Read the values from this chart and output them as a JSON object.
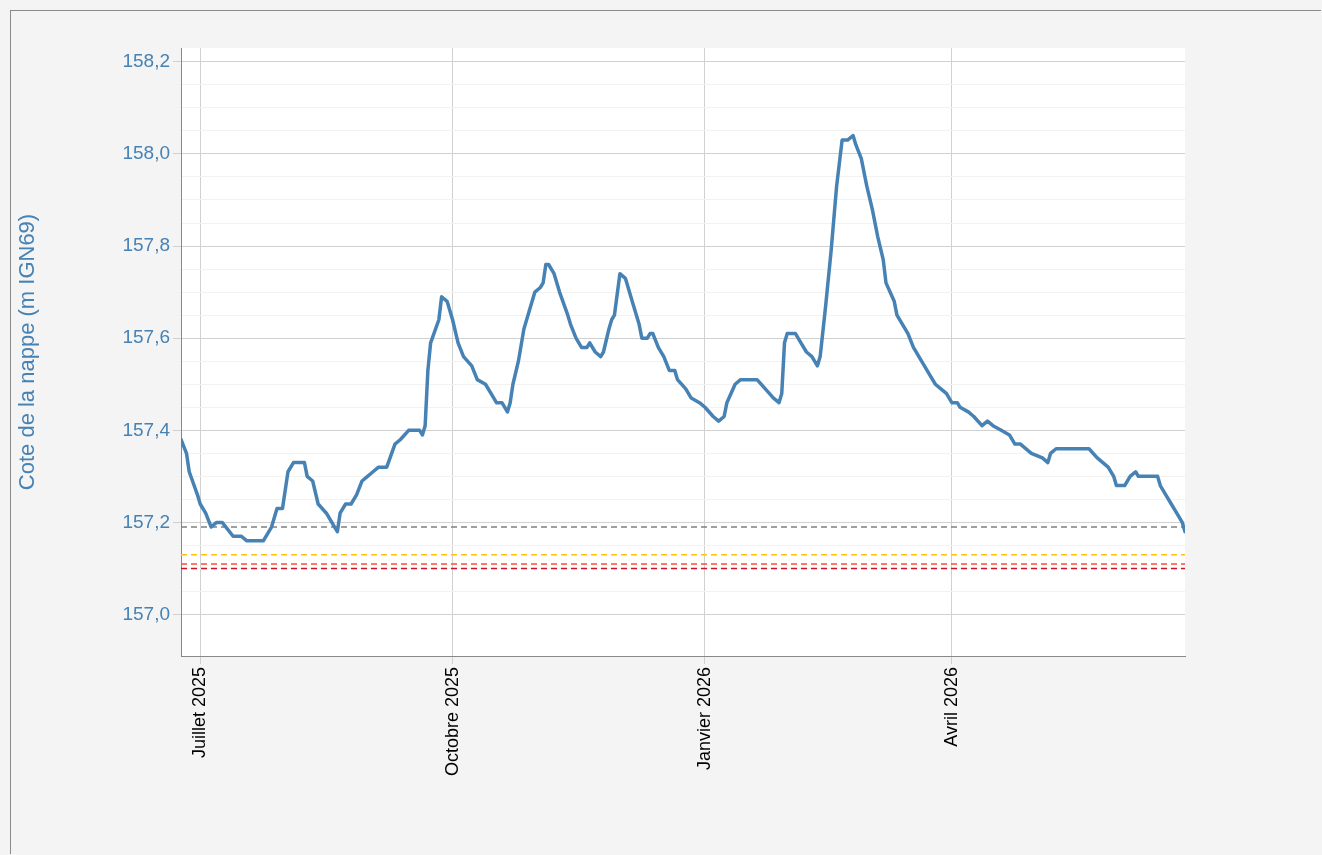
{
  "chart_data": {
    "type": "line",
    "ylabel": "Cote de la nappe (m IGN69)",
    "x": [
      "2025-06-24",
      "2025-06-26",
      "2025-06-27",
      "2025-06-30",
      "2025-07-01",
      "2025-07-03",
      "2025-07-05",
      "2025-07-07",
      "2025-07-09",
      "2025-07-13",
      "2025-07-16",
      "2025-07-18",
      "2025-07-24",
      "2025-07-27",
      "2025-07-29",
      "2025-07-31",
      "2025-08-02",
      "2025-08-04",
      "2025-08-08",
      "2025-08-09",
      "2025-08-11",
      "2025-08-13",
      "2025-08-16",
      "2025-08-19",
      "2025-08-20",
      "2025-08-21",
      "2025-08-23",
      "2025-08-25",
      "2025-08-27",
      "2025-08-29",
      "2025-08-31",
      "2025-09-02",
      "2025-09-04",
      "2025-09-07",
      "2025-09-10",
      "2025-09-12",
      "2025-09-15",
      "2025-09-19",
      "2025-09-20",
      "2025-09-21",
      "2025-09-22",
      "2025-09-23",
      "2025-09-26",
      "2025-09-27",
      "2025-09-29",
      "2025-10-01",
      "2025-10-03",
      "2025-10-05",
      "2025-10-08",
      "2025-10-10",
      "2025-10-13",
      "2025-10-15",
      "2025-10-17",
      "2025-10-19",
      "2025-10-21",
      "2025-10-22",
      "2025-10-23",
      "2025-10-25",
      "2025-10-27",
      "2025-10-29",
      "2025-10-31",
      "2025-11-02",
      "2025-11-03",
      "2025-11-04",
      "2025-11-05",
      "2025-11-07",
      "2025-11-09",
      "2025-11-12",
      "2025-11-13",
      "2025-11-15",
      "2025-11-17",
      "2025-11-19",
      "2025-11-20",
      "2025-11-22",
      "2025-11-24",
      "2025-11-25",
      "2025-11-27",
      "2025-11-28",
      "2025-11-29",
      "2025-12-01",
      "2025-12-03",
      "2025-12-06",
      "2025-12-08",
      "2025-12-09",
      "2025-12-11",
      "2025-12-12",
      "2025-12-13",
      "2025-12-15",
      "2025-12-17",
      "2025-12-19",
      "2025-12-21",
      "2025-12-22",
      "2025-12-25",
      "2025-12-27",
      "2025-12-30",
      "2026-01-01",
      "2026-01-04",
      "2026-01-06",
      "2026-01-08",
      "2026-01-09",
      "2026-01-12",
      "2026-01-14",
      "2026-01-20",
      "2026-01-23",
      "2026-01-26",
      "2026-01-28",
      "2026-01-29",
      "2026-01-30",
      "2026-01-31",
      "2026-02-03",
      "2026-02-05",
      "2026-02-07",
      "2026-02-09",
      "2026-02-11",
      "2026-02-12",
      "2026-02-14",
      "2026-02-16",
      "2026-02-18",
      "2026-02-20",
      "2026-02-22",
      "2026-02-24",
      "2026-02-25",
      "2026-02-27",
      "2026-03-01",
      "2026-03-03",
      "2026-03-05",
      "2026-03-07",
      "2026-03-08",
      "2026-03-11",
      "2026-03-12",
      "2026-03-14",
      "2026-03-16",
      "2026-03-18",
      "2026-03-20",
      "2026-03-22",
      "2026-03-24",
      "2026-03-26",
      "2026-03-28",
      "2026-03-30",
      "2026-04-01",
      "2026-04-03",
      "2026-04-04",
      "2026-04-07",
      "2026-04-09",
      "2026-04-12",
      "2026-04-14",
      "2026-04-16",
      "2026-04-19",
      "2026-04-22",
      "2026-04-24",
      "2026-04-26",
      "2026-04-30",
      "2026-05-04",
      "2026-05-06",
      "2026-05-07",
      "2026-05-09",
      "2026-05-21",
      "2026-05-24",
      "2026-05-28",
      "2026-05-30",
      "2026-05-31",
      "2026-06-03",
      "2026-06-05",
      "2026-06-07",
      "2026-06-08",
      "2026-06-15",
      "2026-06-16",
      "2026-06-18",
      "2026-06-20",
      "2026-06-22",
      "2026-06-24",
      "2026-06-25"
    ],
    "series": [
      {
        "color": "#4682b4",
        "values": [
          157.38,
          157.35,
          157.31,
          157.26,
          157.24,
          157.22,
          157.19,
          157.2,
          157.2,
          157.17,
          157.17,
          157.16,
          157.16,
          157.19,
          157.23,
          157.23,
          157.31,
          157.33,
          157.33,
          157.3,
          157.29,
          157.24,
          157.22,
          157.19,
          157.18,
          157.22,
          157.24,
          157.24,
          157.26,
          157.29,
          157.3,
          157.31,
          157.32,
          157.32,
          157.37,
          157.38,
          157.4,
          157.4,
          157.39,
          157.41,
          157.53,
          157.59,
          157.64,
          157.69,
          157.68,
          157.64,
          157.59,
          157.56,
          157.54,
          157.51,
          157.5,
          157.48,
          157.46,
          157.46,
          157.44,
          157.46,
          157.5,
          157.55,
          157.62,
          157.66,
          157.7,
          157.71,
          157.72,
          157.76,
          157.76,
          157.74,
          157.7,
          157.65,
          157.63,
          157.6,
          157.58,
          157.58,
          157.59,
          157.57,
          157.56,
          157.57,
          157.62,
          157.64,
          157.65,
          157.74,
          157.73,
          157.67,
          157.63,
          157.6,
          157.6,
          157.61,
          157.61,
          157.58,
          157.56,
          157.53,
          157.53,
          157.51,
          157.49,
          157.47,
          157.46,
          157.45,
          157.43,
          157.42,
          157.43,
          157.46,
          157.5,
          157.51,
          157.51,
          157.49,
          157.47,
          157.46,
          157.48,
          157.59,
          157.61,
          157.61,
          157.59,
          157.57,
          157.56,
          157.54,
          157.56,
          157.67,
          157.79,
          157.93,
          158.03,
          158.03,
          158.04,
          158.02,
          157.99,
          157.93,
          157.88,
          157.82,
          157.77,
          157.72,
          157.68,
          157.65,
          157.63,
          157.61,
          157.58,
          157.56,
          157.54,
          157.52,
          157.5,
          157.49,
          157.48,
          157.46,
          157.46,
          157.45,
          157.44,
          157.43,
          157.41,
          157.42,
          157.41,
          157.4,
          157.39,
          157.37,
          157.37,
          157.35,
          157.34,
          157.33,
          157.35,
          157.36,
          157.36,
          157.34,
          157.32,
          157.3,
          157.28,
          157.28,
          157.3,
          157.31,
          157.3,
          157.3,
          157.28,
          157.26,
          157.24,
          157.22,
          157.2,
          157.18
        ]
      }
    ],
    "xlim": [
      "2025-06-24",
      "2026-06-25"
    ],
    "xticks": [
      {
        "value": "2025-07-01",
        "label": "Juillet 2025"
      },
      {
        "value": "2025-10-01",
        "label": "Octobre 2025"
      },
      {
        "value": "2026-01-01",
        "label": "Janvier 2026"
      },
      {
        "value": "2026-04-01",
        "label": "Avril 2026"
      }
    ],
    "ylim": [
      156.91,
      158.23
    ],
    "yticks": [
      {
        "value": 157.0,
        "label": "157,0"
      },
      {
        "value": 157.05,
        "label": null
      },
      {
        "value": 157.1,
        "label": null
      },
      {
        "value": 157.15,
        "label": null
      },
      {
        "value": 157.2,
        "label": "157,2"
      },
      {
        "value": 157.25,
        "label": null
      },
      {
        "value": 157.3,
        "label": null
      },
      {
        "value": 157.35,
        "label": null
      },
      {
        "value": 157.4,
        "label": "157,4"
      },
      {
        "value": 157.45,
        "label": null
      },
      {
        "value": 157.5,
        "label": null
      },
      {
        "value": 157.55,
        "label": null
      },
      {
        "value": 157.6,
        "label": "157,6"
      },
      {
        "value": 157.65,
        "label": null
      },
      {
        "value": 157.7,
        "label": null
      },
      {
        "value": 157.75,
        "label": null
      },
      {
        "value": 157.8,
        "label": "157,8"
      },
      {
        "value": 157.85,
        "label": null
      },
      {
        "value": 157.9,
        "label": null
      },
      {
        "value": 157.95,
        "label": null
      },
      {
        "value": 158.0,
        "label": "158,0"
      },
      {
        "value": 158.05,
        "label": null
      },
      {
        "value": 158.1,
        "label": null
      },
      {
        "value": 158.15,
        "label": null
      },
      {
        "value": 158.2,
        "label": "158,2"
      }
    ],
    "ref_lines": [
      {
        "axis": "y",
        "value": 157.19,
        "color": "#808080",
        "line_style": "dashed"
      },
      {
        "axis": "y",
        "value": 157.13,
        "color": "#ffc20e",
        "line_style": "dashed"
      },
      {
        "axis": "y",
        "value": 157.11,
        "color": "#ff4d2e",
        "line_style": "dashed"
      },
      {
        "axis": "y",
        "value": 157.1,
        "color": "#d0102a",
        "line_style": "dashed"
      }
    ],
    "grid": true,
    "legend": false,
    "marker": "none",
    "line_style": "solid"
  }
}
